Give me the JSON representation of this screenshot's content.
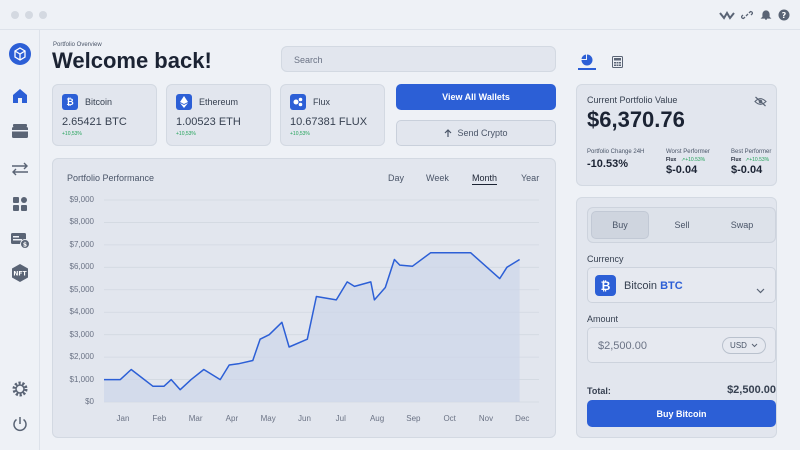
{
  "header": {
    "section": "Portfolio Overview",
    "title": "Welcome back!",
    "search_placeholder": "Search"
  },
  "wallets": [
    {
      "name": "Bitcoin",
      "icon": "bitcoin-icon",
      "amount": "2.65421 BTC",
      "change": "+10,53%"
    },
    {
      "name": "Ethereum",
      "icon": "ethereum-icon",
      "amount": "1.00523 ETH",
      "change": "+10,53%"
    },
    {
      "name": "Flux",
      "icon": "flux-icon",
      "amount": "10.67381 FLUX",
      "change": "+10,53%"
    }
  ],
  "actions": {
    "view_all": "View All Wallets",
    "send": "Send Crypto"
  },
  "chart": {
    "title": "Portfolio Performance",
    "ranges": [
      "Day",
      "Week",
      "Month",
      "Year"
    ],
    "active_range": "Month"
  },
  "chart_data": {
    "type": "area",
    "title": "Portfolio Performance",
    "xlabel": "",
    "ylabel": "",
    "ylim": [
      0,
      9000
    ],
    "grid": true,
    "y_ticks": [
      "$9,000",
      "$8,000",
      "$7,000",
      "$6,000",
      "$5,000",
      "$4,000",
      "$3,000",
      "$2,000",
      "$1,000",
      "$0"
    ],
    "categories": [
      "Jan",
      "Feb",
      "Mar",
      "Apr",
      "May",
      "Jun",
      "Jul",
      "Aug",
      "Sep",
      "Oct",
      "Nov",
      "Dec"
    ],
    "x": [
      0,
      0.45,
      0.75,
      1.35,
      1.65,
      1.85,
      2.1,
      2.4,
      2.75,
      3.2,
      3.45,
      3.7,
      4.1,
      4.3,
      4.55,
      4.9,
      5.1,
      5.6,
      5.85,
      6.4,
      6.7,
      6.9,
      7.35,
      7.45,
      7.75,
      8.0,
      8.15,
      8.5,
      9.0,
      9.6,
      10.1,
      10.9,
      11.1,
      11.45
    ],
    "y": [
      1000,
      1000,
      1450,
      700,
      700,
      1000,
      550,
      1000,
      1450,
      1000,
      1650,
      1700,
      1850,
      2800,
      3000,
      3550,
      2450,
      2800,
      4700,
      4550,
      5350,
      5150,
      5350,
      4550,
      5100,
      6350,
      6100,
      6050,
      6650,
      6650,
      6650,
      5500,
      6000,
      6350
    ],
    "series": [
      {
        "name": "Portfolio",
        "color": "#2c5fd6"
      }
    ]
  },
  "right_panel": {
    "tabs": [
      {
        "icon": "pie-chart-icon"
      },
      {
        "icon": "calculator-icon"
      }
    ],
    "value_label": "Current Portfolio Value",
    "value": "$6,370.76",
    "change_label": "Portfolio Change 24H",
    "change_value": "-10.53%",
    "worst_label": "Worst Performer",
    "worst_coin": "Flux",
    "worst_chg": "+10.53%",
    "worst_value": "$-0.04",
    "best_label": "Best Performer",
    "best_coin": "Flux",
    "best_chg": "+10.53%",
    "best_value": "$-0.04"
  },
  "trade": {
    "modes": [
      "Buy",
      "Sell",
      "Swap"
    ],
    "active_mode": "Buy",
    "currency_label": "Currency",
    "currency_name": "Bitcoin",
    "currency_code": "BTC",
    "amount_label": "Amount",
    "amount_value": "$2,500.00",
    "amount_unit": "USD",
    "total_label": "Total:",
    "total_value": "$2,500.00",
    "submit": "Buy Bitcoin"
  },
  "colors": {
    "accent": "#2c5fd6",
    "positive": "#23a35a",
    "background": "#eef1f6"
  }
}
